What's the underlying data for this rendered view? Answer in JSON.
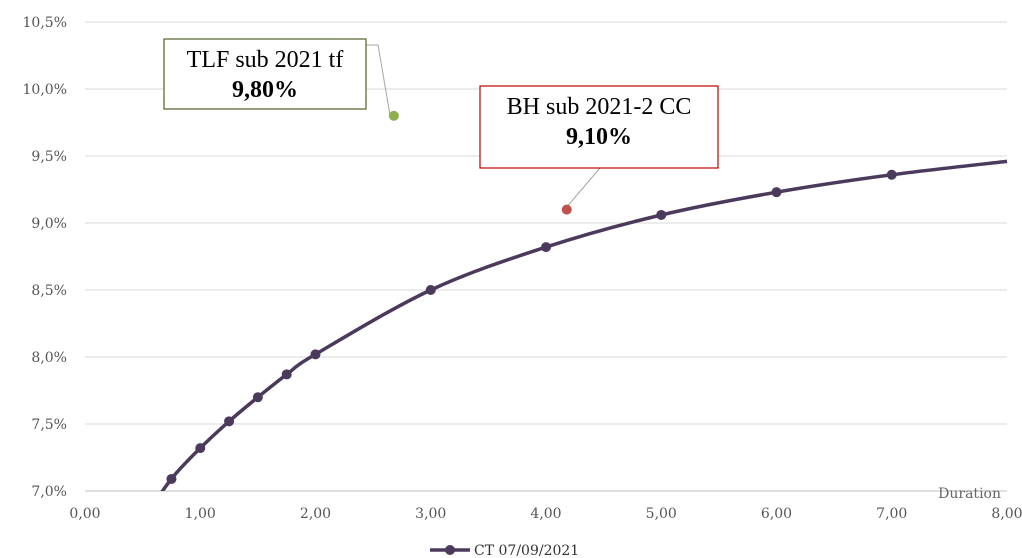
{
  "chart_data": {
    "type": "line",
    "x_axis": {
      "label": "Duration",
      "min": 0,
      "max": 8,
      "tick_labels": [
        "0,00",
        "1,00",
        "2,00",
        "3,00",
        "4,00",
        "5,00",
        "6,00",
        "7,00",
        "8,00"
      ]
    },
    "y_axis": {
      "min": 7.0,
      "max": 10.5,
      "tick_labels": [
        "7,0%",
        "7,5%",
        "8,0%",
        "8,5%",
        "9,0%",
        "9,5%",
        "10,0%",
        "10,5%"
      ]
    },
    "grid": "horizontal",
    "legend_position": "bottom",
    "series": [
      {
        "name": "CT 07/09/2021",
        "color": "#4B3A5B",
        "x": [
          0.5,
          0.75,
          1.0,
          1.25,
          1.5,
          1.75,
          2.0,
          3.0,
          4.0,
          5.0,
          6.0,
          7.0,
          8.0
        ],
        "y": [
          6.78,
          7.09,
          7.32,
          7.52,
          7.7,
          7.87,
          8.02,
          8.5,
          8.82,
          9.06,
          9.23,
          9.36,
          9.46
        ],
        "markers": [
          0.75,
          1.0,
          1.25,
          1.5,
          1.75,
          2.0,
          3.0,
          4.0,
          5.0,
          6.0,
          7.0
        ]
      }
    ],
    "points": [
      {
        "name": "TLF sub 2021 tf",
        "value_label": "9,80%",
        "x": 2.68,
        "y": 9.8,
        "color": "#8DB04A",
        "border": "#4F6228"
      },
      {
        "name": "BH sub 2021-2 CC",
        "value_label": "9,10%",
        "x": 4.18,
        "y": 9.1,
        "color": "#C0504D",
        "border": "#C00000"
      }
    ]
  }
}
